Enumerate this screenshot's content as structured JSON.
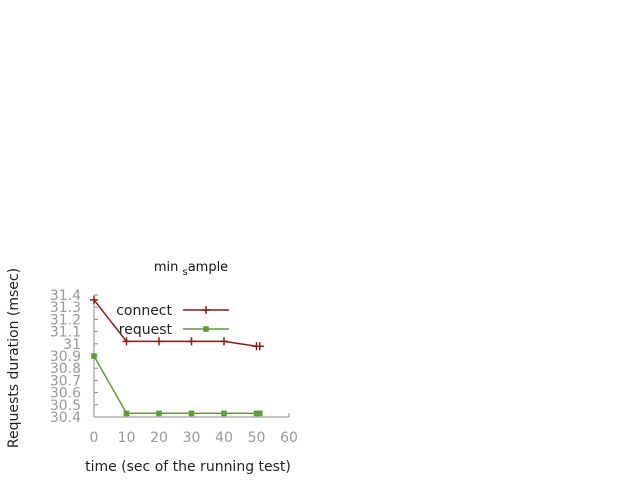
{
  "chart_data": {
    "type": "line",
    "title": "min sample",
    "title_parts": {
      "before": "min ",
      "sub": "s",
      "after": "ample"
    },
    "xlabel": "time (sec of the running test)",
    "ylabel": "Requests duration (msec)",
    "xlim": [
      0,
      60
    ],
    "ylim": [
      30.4,
      31.4
    ],
    "x_ticks": [
      "0",
      "10",
      "20",
      "30",
      "40",
      "50",
      "60"
    ],
    "y_ticks": [
      "30.4",
      "30.5",
      "30.6",
      "30.7",
      "30.8",
      "30.9",
      "31",
      "31.1",
      "31.2",
      "31.3",
      "31.4"
    ],
    "grid": false,
    "legend_position": "top-right",
    "series": [
      {
        "name": "connect",
        "color": "#8b1a0e",
        "marker": "plus",
        "x": [
          0,
          10,
          20,
          30,
          40,
          50,
          51
        ],
        "y": [
          31.36,
          31.02,
          31.02,
          31.02,
          31.02,
          30.98,
          30.98
        ]
      },
      {
        "name": "request",
        "color": "#5e9c36",
        "marker": "filled-square",
        "x": [
          0,
          10,
          20,
          30,
          40,
          50,
          51
        ],
        "y": [
          30.9,
          30.43,
          30.43,
          30.43,
          30.43,
          30.43,
          30.43
        ]
      }
    ]
  }
}
